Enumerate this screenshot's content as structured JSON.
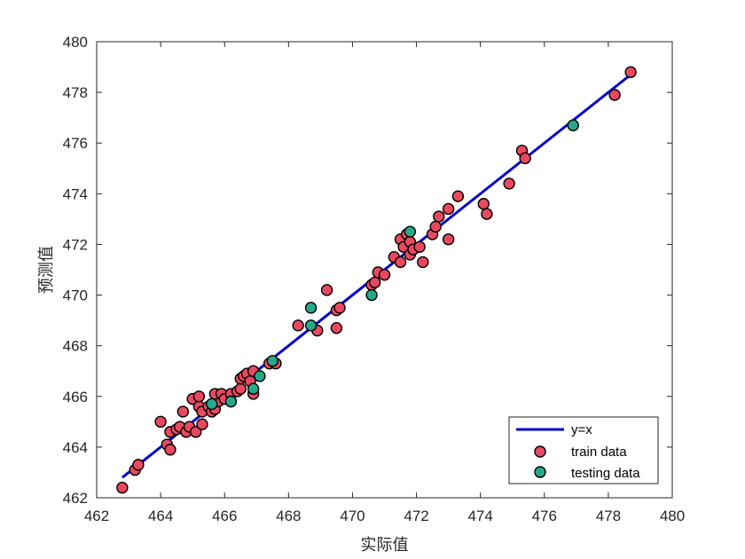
{
  "chart_data": {
    "type": "scatter",
    "title": "",
    "xlabel": "实际值",
    "ylabel": "预测值",
    "xlim": [
      462,
      480
    ],
    "ylim": [
      462,
      480
    ],
    "xticks": [
      462,
      464,
      466,
      468,
      470,
      472,
      474,
      476,
      478,
      480
    ],
    "yticks": [
      462,
      464,
      466,
      468,
      470,
      472,
      474,
      476,
      478,
      480
    ],
    "grid": false,
    "legend_position": "bottom-right",
    "colors": {
      "line": "#0000cc",
      "train": "#e8495f",
      "testing": "#26a98b",
      "marker_edge": "#000000",
      "axes": "#262626"
    },
    "series": [
      {
        "name": "y=x",
        "kind": "line",
        "x": [
          462.8,
          478.7
        ],
        "y": [
          462.8,
          478.7
        ]
      },
      {
        "name": "train data",
        "kind": "scatter",
        "points": [
          [
            462.8,
            462.4
          ],
          [
            463.2,
            463.1
          ],
          [
            463.3,
            463.3
          ],
          [
            464.0,
            465.0
          ],
          [
            464.2,
            464.1
          ],
          [
            464.3,
            463.9
          ],
          [
            464.3,
            464.6
          ],
          [
            464.5,
            464.7
          ],
          [
            464.6,
            464.8
          ],
          [
            464.7,
            465.4
          ],
          [
            464.8,
            464.6
          ],
          [
            464.9,
            464.8
          ],
          [
            465.0,
            465.9
          ],
          [
            465.1,
            464.6
          ],
          [
            465.2,
            465.6
          ],
          [
            465.2,
            466.0
          ],
          [
            465.3,
            465.4
          ],
          [
            465.3,
            464.9
          ],
          [
            465.5,
            465.6
          ],
          [
            465.6,
            465.4
          ],
          [
            465.7,
            465.5
          ],
          [
            465.8,
            465.8
          ],
          [
            465.7,
            466.1
          ],
          [
            465.9,
            466.1
          ],
          [
            466.0,
            465.9
          ],
          [
            466.2,
            466.1
          ],
          [
            466.4,
            466.2
          ],
          [
            466.5,
            466.3
          ],
          [
            466.5,
            466.7
          ],
          [
            466.6,
            466.8
          ],
          [
            466.7,
            466.9
          ],
          [
            466.8,
            466.6
          ],
          [
            466.9,
            467.0
          ],
          [
            466.9,
            466.1
          ],
          [
            467.4,
            467.3
          ],
          [
            467.6,
            467.3
          ],
          [
            468.3,
            468.8
          ],
          [
            468.9,
            468.6
          ],
          [
            469.2,
            470.2
          ],
          [
            469.5,
            468.7
          ],
          [
            469.5,
            469.4
          ],
          [
            469.6,
            469.5
          ],
          [
            470.6,
            470.4
          ],
          [
            470.7,
            470.5
          ],
          [
            470.8,
            470.9
          ],
          [
            471.0,
            470.8
          ],
          [
            471.3,
            471.5
          ],
          [
            471.5,
            471.3
          ],
          [
            471.5,
            472.2
          ],
          [
            471.6,
            471.9
          ],
          [
            471.7,
            472.4
          ],
          [
            471.8,
            471.6
          ],
          [
            471.8,
            472.1
          ],
          [
            471.9,
            471.8
          ],
          [
            472.1,
            471.9
          ],
          [
            472.2,
            471.3
          ],
          [
            472.5,
            472.4
          ],
          [
            472.6,
            472.7
          ],
          [
            472.7,
            473.1
          ],
          [
            473.0,
            473.4
          ],
          [
            473.0,
            472.2
          ],
          [
            473.3,
            473.9
          ],
          [
            474.1,
            473.6
          ],
          [
            474.2,
            473.2
          ],
          [
            474.9,
            474.4
          ],
          [
            475.3,
            475.7
          ],
          [
            475.4,
            475.4
          ],
          [
            478.2,
            477.9
          ],
          [
            478.7,
            478.8
          ]
        ]
      },
      {
        "name": "testing data",
        "kind": "scatter",
        "points": [
          [
            465.6,
            465.7
          ],
          [
            466.2,
            465.8
          ],
          [
            466.9,
            466.3
          ],
          [
            467.1,
            466.8
          ],
          [
            467.5,
            467.4
          ],
          [
            468.7,
            469.5
          ],
          [
            468.7,
            468.8
          ],
          [
            470.6,
            470.0
          ],
          [
            471.8,
            472.5
          ],
          [
            476.9,
            476.7
          ]
        ]
      }
    ]
  }
}
